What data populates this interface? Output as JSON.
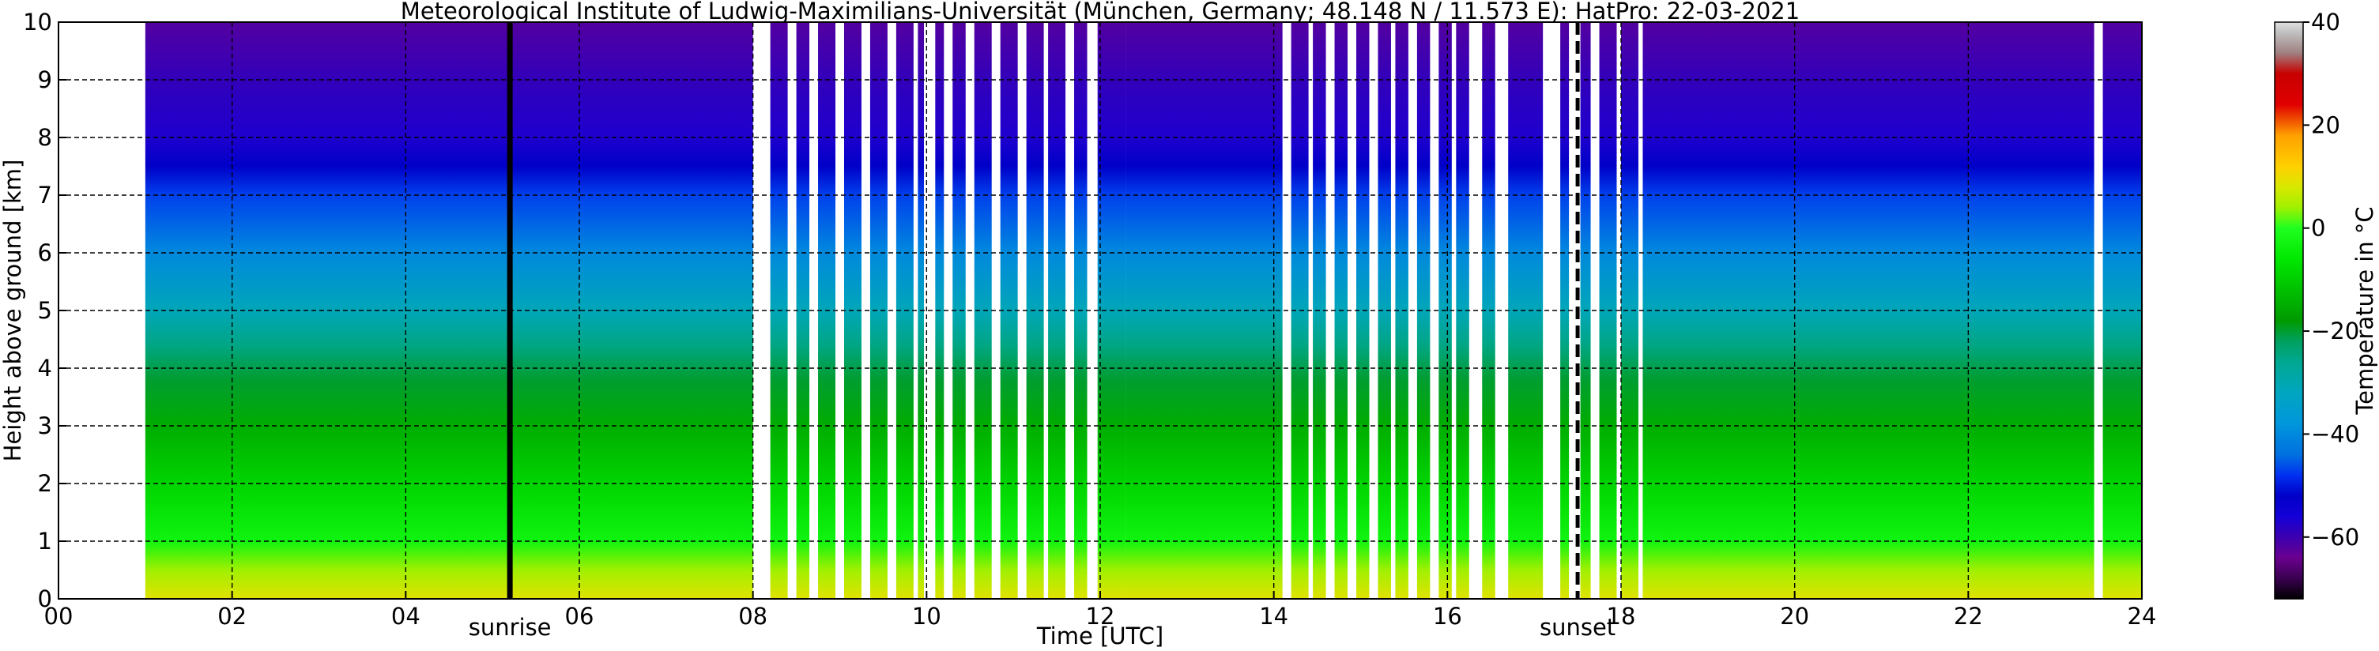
{
  "chart_data": {
    "type": "heatmap",
    "title": "Meteorological Institute of Ludwig-Maximilians-Universität (München, Germany; 48.148 N / 11.573 E):    HatPro: 22-03-2021",
    "xlabel": "Time [UTC]",
    "ylabel": "Height above ground [km]",
    "xlim": [
      0,
      24
    ],
    "ylim": [
      0,
      10
    ],
    "x_ticks": [
      "00",
      "02",
      "04",
      "06",
      "08",
      "10",
      "12",
      "14",
      "16",
      "18",
      "20",
      "22",
      "24"
    ],
    "y_ticks": [
      "0",
      "1",
      "2",
      "3",
      "4",
      "5",
      "6",
      "7",
      "8",
      "9",
      "10"
    ],
    "grid": true,
    "data_coverage": [
      [
        1.0,
        8.0
      ],
      [
        8.2,
        8.4
      ],
      [
        8.5,
        8.65
      ],
      [
        8.75,
        8.95
      ],
      [
        9.05,
        9.25
      ],
      [
        9.35,
        9.55
      ],
      [
        9.65,
        9.85
      ],
      [
        9.9,
        9.97
      ],
      [
        10.1,
        10.2
      ],
      [
        10.3,
        10.45
      ],
      [
        10.55,
        10.75
      ],
      [
        10.85,
        11.05
      ],
      [
        11.15,
        11.35
      ],
      [
        11.4,
        11.6
      ],
      [
        11.7,
        11.85
      ],
      [
        11.97,
        12.3
      ],
      [
        12.3,
        14.1
      ],
      [
        14.2,
        14.4
      ],
      [
        14.45,
        14.6
      ],
      [
        14.7,
        14.85
      ],
      [
        14.95,
        15.1
      ],
      [
        15.2,
        15.35
      ],
      [
        15.4,
        15.55
      ],
      [
        15.65,
        15.8
      ],
      [
        15.9,
        16.05
      ],
      [
        16.1,
        16.25
      ],
      [
        16.4,
        16.55
      ],
      [
        16.7,
        17.1
      ],
      [
        17.3,
        17.4
      ],
      [
        17.5,
        17.65
      ],
      [
        17.75,
        17.95
      ],
      [
        18.0,
        18.2
      ],
      [
        18.25,
        23.45
      ],
      [
        23.55,
        24.0
      ]
    ],
    "sunrise": {
      "time": 5.2,
      "label": "sunrise"
    },
    "sunset": {
      "time": 17.5,
      "label": "sunset"
    },
    "temperature_profile": [
      {
        "height_km": 0,
        "temp_c": 9
      },
      {
        "height_km": 0.5,
        "temp_c": 4
      },
      {
        "height_km": 1,
        "temp_c": -3
      },
      {
        "height_km": 2,
        "temp_c": -9
      },
      {
        "height_km": 3,
        "temp_c": -15
      },
      {
        "height_km": 3.8,
        "temp_c": -20
      },
      {
        "height_km": 4.4,
        "temp_c": -25
      },
      {
        "height_km": 5,
        "temp_c": -31
      },
      {
        "height_km": 6,
        "temp_c": -40
      },
      {
        "height_km": 7,
        "temp_c": -47
      },
      {
        "height_km": 7.5,
        "temp_c": -52
      },
      {
        "height_km": 8,
        "temp_c": -57
      },
      {
        "height_km": 9,
        "temp_c": -59
      },
      {
        "height_km": 10,
        "temp_c": -62
      }
    ],
    "colorbar": {
      "label": "Temperature in $^\\circ$C",
      "range": [
        -72,
        40
      ],
      "ticks": [
        "40",
        "20",
        "0",
        "−20",
        "−40",
        "−60"
      ],
      "colors": [
        {
          "value": -72,
          "color": "#000000"
        },
        {
          "value": -68,
          "color": "#3a0050"
        },
        {
          "value": -64,
          "color": "#6a0090"
        },
        {
          "value": -60,
          "color": "#3c00b0"
        },
        {
          "value": -56,
          "color": "#1400d8"
        },
        {
          "value": -52,
          "color": "#0000c8"
        },
        {
          "value": -48,
          "color": "#0030f0"
        },
        {
          "value": -44,
          "color": "#0070e0"
        },
        {
          "value": -38,
          "color": "#0096dc"
        },
        {
          "value": -32,
          "color": "#00a6c0"
        },
        {
          "value": -26,
          "color": "#00a890"
        },
        {
          "value": -22,
          "color": "#00a060"
        },
        {
          "value": -18,
          "color": "#009a00"
        },
        {
          "value": -12,
          "color": "#00c000"
        },
        {
          "value": -6,
          "color": "#00e800"
        },
        {
          "value": 0,
          "color": "#20ff20"
        },
        {
          "value": 4,
          "color": "#a0f000"
        },
        {
          "value": 8,
          "color": "#d8e800"
        },
        {
          "value": 12,
          "color": "#ffd000"
        },
        {
          "value": 18,
          "color": "#ffa000"
        },
        {
          "value": 24,
          "color": "#e00000"
        },
        {
          "value": 30,
          "color": "#c80000"
        },
        {
          "value": 34,
          "color": "#a08080"
        },
        {
          "value": 38,
          "color": "#c0c0c0"
        },
        {
          "value": 40,
          "color": "#e0e0e0"
        }
      ]
    }
  }
}
